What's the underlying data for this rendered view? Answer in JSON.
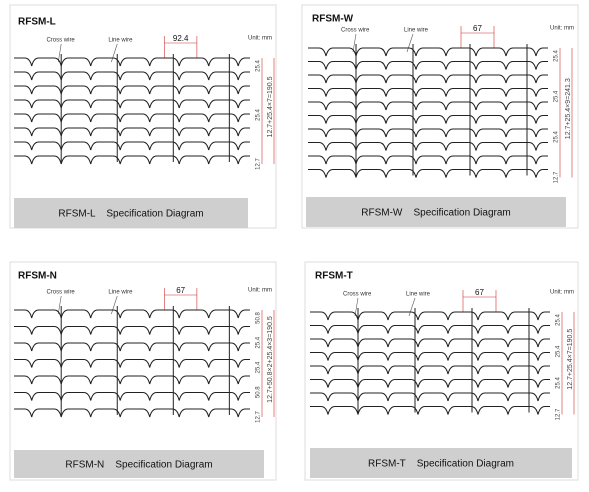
{
  "panels": [
    {
      "label": "RFSM-L",
      "cross_wire": "Cross wire",
      "line_wire": "Line wire",
      "pitch": "92.4",
      "unit": "Unit: mm",
      "dims": [
        "25.4",
        "25.4",
        "12.7"
      ],
      "total": "12.7+25.4×7=190.5",
      "caption": "RFSM-L    Specification Diagram"
    },
    {
      "label": "RFSM-W",
      "cross_wire": "Cross wire",
      "line_wire": "Line wire",
      "pitch": "67",
      "unit": "Unit: mm",
      "dims": [
        "25.4",
        "25.4",
        "25.4",
        "12.7"
      ],
      "total": "12.7+25.4×9=241.3",
      "caption": "RFSM-W    Specification Diagram"
    },
    {
      "label": "RFSM-N",
      "cross_wire": "Cross wire",
      "line_wire": "Line wire",
      "pitch": "67",
      "unit": "Unit: mm",
      "dims": [
        "50.8",
        "25.4",
        "25.4",
        "50.8",
        "12.7"
      ],
      "total": "12.7+50.8×2+25.4×3=190.5",
      "caption": "RFSM-N    Specification Diagram"
    },
    {
      "label": "RFSM-T",
      "cross_wire": "Cross wire",
      "line_wire": "Line wire",
      "pitch": "67",
      "unit": "Unit: mm",
      "dims": [
        "25.4",
        "25.4",
        "25.4",
        "12.7"
      ],
      "total": "12.7+25.4×7=190.5",
      "caption": "RFSM-T    Specification Diagram"
    }
  ]
}
